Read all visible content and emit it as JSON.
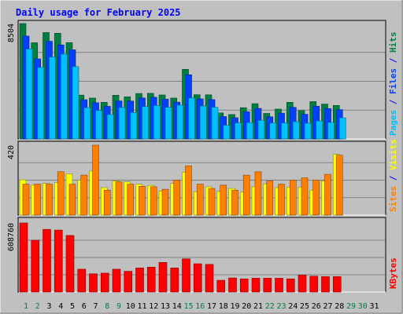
{
  "chart_data": {
    "type": "bar",
    "title": "Daily usage for February 2025",
    "days": [
      "1",
      "2",
      "3",
      "4",
      "5",
      "6",
      "7",
      "8",
      "9",
      "10",
      "11",
      "12",
      "13",
      "14",
      "15",
      "16",
      "17",
      "18",
      "19",
      "20",
      "21",
      "22",
      "23",
      "24",
      "25",
      "26",
      "27",
      "28",
      "29",
      "30",
      "31"
    ],
    "weekend_days": [
      "1",
      "2",
      "8",
      "9",
      "15",
      "16",
      "22",
      "23",
      "29",
      "30"
    ],
    "panels": [
      {
        "ymax_label": "8504",
        "ymax": 8504,
        "right_labels": [
          {
            "text": "Hits",
            "color": "#008040"
          },
          {
            "text": " / ",
            "color": "#0000ff"
          },
          {
            "text": "Files",
            "color": "#0040ff"
          },
          {
            "text": " / ",
            "color": "#0000ff"
          },
          {
            "text": "Pages",
            "color": "#00c0ff"
          }
        ],
        "series": [
          {
            "name": "Hits",
            "color": "#008040",
            "values": [
              8504,
              7090,
              7840,
              7790,
              7100,
              3230,
              3010,
              2700,
              3220,
              3100,
              3350,
              3360,
              3240,
              3010,
              5130,
              3260,
              3250,
              1920,
              1800,
              2300,
              2600,
              1880,
              2200,
              2700,
              2090,
              2750,
              2570,
              2470
            ]
          },
          {
            "name": "Files",
            "color": "#0040ff",
            "values": [
              7580,
              5900,
              7200,
              6930,
              6570,
              2890,
              2670,
              2400,
              2800,
              2790,
              3020,
              3070,
              2930,
              2710,
              4730,
              2950,
              2900,
              1650,
              1560,
              2000,
              2250,
              1630,
              1900,
              2330,
              1820,
              2410,
              2240,
              2160
            ]
          },
          {
            "name": "Pages",
            "color": "#00c0ff",
            "values": [
              6630,
              5270,
              6030,
              6250,
              5330,
              2300,
              2100,
              1800,
              2320,
              1950,
              2390,
              2460,
              2330,
              2490,
              3020,
              2430,
              2330,
              1010,
              1180,
              1200,
              1370,
              1180,
              1180,
              1270,
              1160,
              1330,
              1220,
              1560
            ]
          }
        ]
      },
      {
        "ymax_label": "420",
        "ymax": 420,
        "right_labels": [
          {
            "text": "Visits",
            "color": "#ffff00"
          },
          {
            "text": " / ",
            "color": "#0000ff"
          },
          {
            "text": "Sites",
            "color": "#ff8000"
          }
        ],
        "series": [
          {
            "name": "Visits",
            "color": "#ffff00",
            "values": [
              212,
              180,
              190,
              195,
              248,
              210,
              265,
              165,
              205,
              200,
              185,
              178,
              145,
              190,
              258,
              140,
              170,
              142,
              160,
              138,
              170,
              188,
              165,
              168,
              168,
              150,
              205,
              365
            ]
          },
          {
            "name": "Sites",
            "color": "#ff8000",
            "values": [
              186,
              186,
              186,
              261,
              186,
              240,
              420,
              150,
              200,
              186,
              173,
              170,
              155,
              210,
              296,
              186,
              160,
              180,
              150,
              240,
              260,
              205,
              186,
              210,
              224,
              210,
              245,
              360
            ]
          }
        ]
      },
      {
        "ymax_label": "608760",
        "ymax": 608760,
        "right_labels": [
          {
            "text": "KBytes",
            "color": "#ff0000"
          }
        ],
        "series": [
          {
            "name": "KBytes",
            "color": "#ff0000",
            "values": [
              608760,
              456270,
              552000,
              545910,
              498480,
              200870,
              160700,
              166500,
              200870,
              182600,
              212000,
              219140,
              261000,
              212000,
              292170,
              249000,
              243500,
              103500,
              124000,
              115600,
              121700,
              121700,
              121700,
              115600,
              149000,
              139800,
              136000,
              136000
            ]
          }
        ]
      }
    ]
  }
}
